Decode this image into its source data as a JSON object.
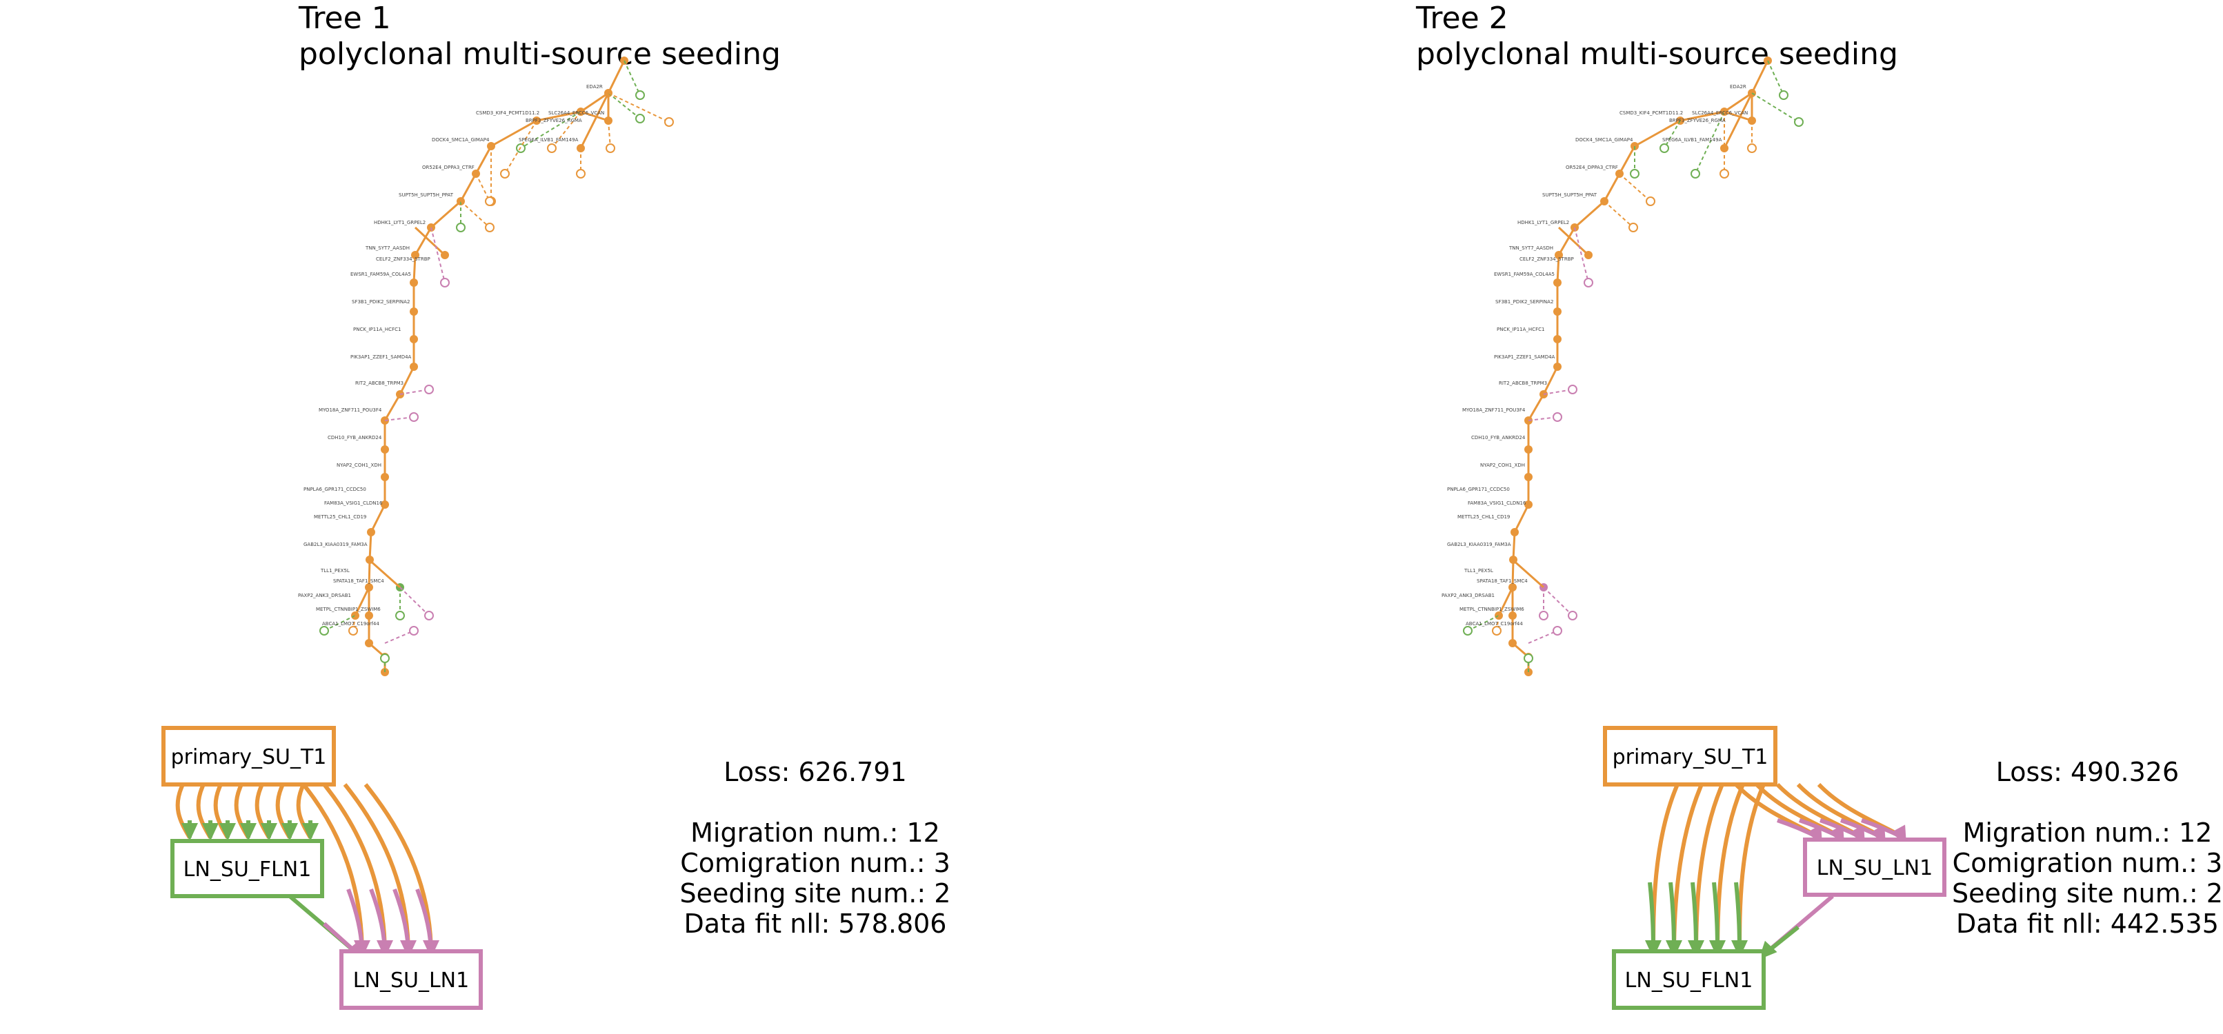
{
  "colors": {
    "orange": "#E8963A",
    "green": "#6FAF54",
    "pink": "#C97FB1"
  },
  "trees": [
    {
      "title": "Tree 1",
      "subtitle": "polyclonal multi-source seeding",
      "stats": {
        "loss": "Loss: 626.791",
        "migration": "Migration num.: 12",
        "comigration": "Comigration num.: 3",
        "seeding": "Seeding site num.: 2",
        "datafit": "Data fit nll: 578.806"
      },
      "labels": [
        "EDA2R",
        "CSMD3_KIF4_PCMT1D11.2",
        "SLC26A4_ERCC6_VCAN",
        "BRPF3_ZFYVE26_RGMA",
        "DOCK4_SMC1A_GIMAP4",
        "SPEG6A_ILVB1_FAM149A",
        "OR52E4_DPPA3_CTRF",
        "SUPT5H_SUPT5H_PPAT",
        "HDHK1_LYT1_GRPEL2",
        "TNN_SYT7_AASDH",
        "CELF2_ZNF334_STRBP",
        "EWSR1_FAM59A_COL4A5",
        "SF3B1_PDIK2_SERPINA2",
        "PNCK_IP11A_HCFC1",
        "PIK3AP1_ZZEF1_SAMD4A",
        "RIT2_ABCB8_TRPM3",
        "MYO18A_ZNF711_POU3F4",
        "CDH10_FYB_ANKRD24",
        "NYAP2_COH1_XDH",
        "PNPLA6_GPR171_CCDC50",
        "FAM83A_VSIG1_CLDN16",
        "METTL25_CHL1_CD19",
        "GAB2L3_KIAA0319_FAM3A",
        "TLL1_PEX5L",
        "SPATA18_TAF1_SMC4",
        "PAXP2_ANK3_DRSAB1",
        "METPL_CTNNBIP1_ZSWIM6",
        "ABCA1_LMO7_C19orf44"
      ],
      "sources": [
        {
          "name": "primary_SU_T1",
          "color": "orange"
        },
        {
          "name": "LN_SU_FLN1",
          "color": "green"
        },
        {
          "name": "LN_SU_LN1",
          "color": "pink"
        }
      ]
    },
    {
      "title": "Tree 2",
      "subtitle": "polyclonal multi-source seeding",
      "stats": {
        "loss": "Loss: 490.326",
        "migration": "Migration num.: 12",
        "comigration": "Comigration num.: 3",
        "seeding": "Seeding site num.: 2",
        "datafit": "Data fit nll: 442.535"
      },
      "labels": [
        "EDA2R",
        "CSMD3_KIF4_PCMT1D11.2",
        "SLC26A4_ERCC6_VCAN",
        "BRPF3_ZFYVE26_RGMA",
        "DOCK4_SMC1A_GIMAP4",
        "SPEG6A_ILVB1_FAM149A",
        "OR52E4_DPPA3_CTRF",
        "SUPT5H_SUPT5H_PPAT",
        "HDHK1_LYT1_GRPEL2",
        "TNN_SYT7_AASDH",
        "CELF2_ZNF334_STRBP",
        "EWSR1_FAM59A_COL4A5",
        "SF3B1_PDIK2_SERPINA2",
        "PNCK_IP11A_HCFC1",
        "PIK3AP1_ZZEF1_SAMD4A",
        "RIT2_ABCB8_TRPM3",
        "MYO18A_ZNF711_POU3F4",
        "CDH10_FYB_ANKRD24",
        "NYAP2_COH1_XDH",
        "PNPLA6_GPR171_CCDC50",
        "FAM83A_VSIG1_CLDN16",
        "METTL25_CHL1_CD19",
        "GAB2L3_KIAA0319_FAM3A",
        "TLL1_PEX5L",
        "SPATA18_TAF1_SMC4",
        "PAXP2_ANK3_DRSAB1",
        "METPL_CTNNBIP1_ZSWIM6",
        "ABCA1_LMO7_C19orf44"
      ],
      "sources": [
        {
          "name": "primary_SU_T1",
          "color": "orange"
        },
        {
          "name": "LN_SU_LN1",
          "color": "pink"
        },
        {
          "name": "LN_SU_FLN1",
          "color": "green"
        }
      ]
    }
  ]
}
